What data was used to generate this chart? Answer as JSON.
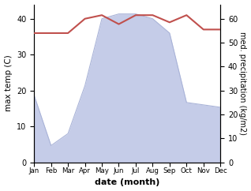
{
  "months": [
    "Jan",
    "Feb",
    "Mar",
    "Apr",
    "May",
    "Jun",
    "Jul",
    "Aug",
    "Sep",
    "Oct",
    "Nov",
    "Dec"
  ],
  "month_x": [
    1,
    2,
    3,
    4,
    5,
    6,
    7,
    8,
    9,
    10,
    11,
    12
  ],
  "temperature": [
    36,
    36,
    36,
    40,
    41,
    38.5,
    41,
    41,
    39,
    41,
    37,
    37
  ],
  "precipitation": [
    28,
    7,
    12,
    32,
    60,
    62,
    62,
    60,
    54,
    25,
    24,
    23
  ],
  "temp_color": "#c0504d",
  "precip_fill_color": "#c5cce8",
  "precip_line_color": "#aab4d8",
  "temp_ylim": [
    0,
    44
  ],
  "precip_ylim": [
    0,
    66
  ],
  "temp_yticks": [
    0,
    10,
    20,
    30,
    40
  ],
  "precip_yticks": [
    0,
    10,
    20,
    30,
    40,
    50,
    60
  ],
  "xlabel": "date (month)",
  "ylabel_left": "max temp (C)",
  "ylabel_right": "med. precipitation (kg/m2)",
  "fig_width": 3.18,
  "fig_height": 2.42,
  "dpi": 100
}
